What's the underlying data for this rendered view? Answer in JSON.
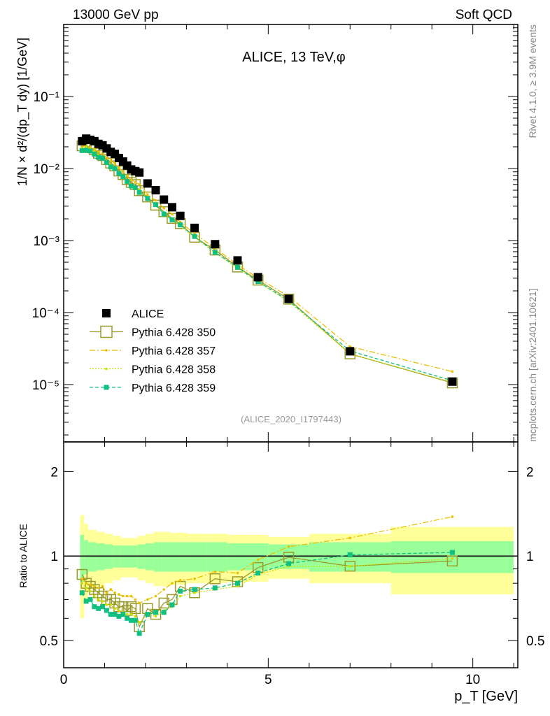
{
  "header": {
    "left": "13000 GeV pp",
    "right": "Soft QCD"
  },
  "side": {
    "rivet": "Rivet 4.1.0, ≥ 3.9M events",
    "mcplots": "mcplots.cern.ch [arXiv:2401.10621]"
  },
  "chart_data": [
    {
      "type": "scatter",
      "title": "ALICE, 13 TeV,φ",
      "ylabel": "1/N × d²/(dp_T dy) [1/GeV]",
      "xlabel": "p_T [GeV]",
      "xlim": [
        0,
        11.1
      ],
      "ylim": [
        1.6e-06,
        1
      ],
      "yscale": "log",
      "yticks": [
        "10⁻⁵",
        "10⁻⁴",
        "10⁻³",
        "10⁻²",
        "10⁻¹"
      ],
      "analysis_id": "(ALICE_2020_I1797443)",
      "x": [
        0.45,
        0.55,
        0.65,
        0.75,
        0.85,
        0.95,
        1.05,
        1.15,
        1.25,
        1.35,
        1.45,
        1.55,
        1.65,
        1.75,
        1.85,
        2.05,
        2.25,
        2.45,
        2.65,
        2.85,
        3.2,
        3.7,
        4.25,
        4.75,
        5.5,
        7.0,
        9.5
      ],
      "alice": [
        0.024,
        0.026,
        0.025,
        0.024,
        0.022,
        0.021,
        0.019,
        0.017,
        0.016,
        0.014,
        0.0125,
        0.011,
        0.0097,
        0.0092,
        0.0088,
        0.0062,
        0.005,
        0.0037,
        0.0029,
        0.0022,
        0.0015,
        0.00089,
        0.00053,
        0.00031,
        0.000155,
        2.9e-05,
        1.1e-05
      ],
      "legend": [
        "ALICE",
        "Pythia 6.428 350",
        "Pythia 6.428 357",
        "Pythia 6.428 358",
        "Pythia 6.428 359"
      ],
      "legend_position": "bottom-left"
    },
    {
      "type": "line",
      "ylabel": "Ratio to ALICE",
      "ylim": [
        0.4,
        2.55
      ],
      "yscale": "log",
      "yticks": [
        "0.5",
        "1",
        "2"
      ],
      "xticks": [
        "0",
        "5",
        "10"
      ],
      "series": [
        {
          "name": "Pythia 6.428 350",
          "color": "#9a9a2a",
          "values": [
            0.86,
            0.8,
            0.78,
            0.76,
            0.74,
            0.72,
            0.7,
            0.7,
            0.68,
            0.66,
            0.66,
            0.64,
            0.66,
            0.65,
            0.56,
            0.65,
            0.62,
            0.68,
            0.7,
            0.78,
            0.74,
            0.83,
            0.81,
            0.91,
            0.99,
            0.92,
            0.96
          ]
        },
        {
          "name": "Pythia 6.428 357",
          "color": "#e8c000",
          "values": [
            0.83,
            0.8,
            0.79,
            0.78,
            0.77,
            0.78,
            0.74,
            0.76,
            0.74,
            0.73,
            0.72,
            0.72,
            0.72,
            0.7,
            0.68,
            0.7,
            0.72,
            0.76,
            0.8,
            0.82,
            0.83,
            0.88,
            0.87,
            0.97,
            1.08,
            1.16,
            1.38
          ]
        },
        {
          "name": "Pythia 6.428 358",
          "color": "#c8e000",
          "values": [
            0.8,
            0.77,
            0.75,
            0.72,
            0.7,
            0.69,
            0.67,
            0.67,
            0.65,
            0.64,
            0.63,
            0.62,
            0.62,
            0.61,
            0.58,
            0.62,
            0.61,
            0.64,
            0.66,
            0.72,
            0.74,
            0.76,
            0.78,
            0.86,
            0.92,
            0.92,
            0.98
          ]
        },
        {
          "name": "Pythia 6.428 359",
          "color": "#10c080",
          "values": [
            0.74,
            0.69,
            0.7,
            0.66,
            0.65,
            0.66,
            0.64,
            0.62,
            0.62,
            0.61,
            0.62,
            0.6,
            0.59,
            0.59,
            0.53,
            0.62,
            0.63,
            0.63,
            0.67,
            0.75,
            0.76,
            0.77,
            0.8,
            0.87,
            0.94,
            1.01,
            1.03
          ]
        }
      ],
      "bands": {
        "edges": [
          0.4,
          0.5,
          0.6,
          0.8,
          1.0,
          1.2,
          1.4,
          1.6,
          1.8,
          2.0,
          2.2,
          2.4,
          2.6,
          3.0,
          3.5,
          4.0,
          4.5,
          5.0,
          6.0,
          8.0,
          11.0
        ],
        "stat": [
          0.19,
          0.14,
          0.12,
          0.11,
          0.1,
          0.09,
          0.09,
          0.09,
          0.1,
          0.11,
          0.12,
          0.12,
          0.12,
          0.12,
          0.12,
          0.11,
          0.11,
          0.1,
          0.12,
          0.13
        ],
        "total": [
          0.4,
          0.3,
          0.24,
          0.22,
          0.2,
          0.18,
          0.16,
          0.16,
          0.18,
          0.2,
          0.22,
          0.22,
          0.21,
          0.2,
          0.2,
          0.19,
          0.19,
          0.17,
          0.2,
          0.27
        ]
      }
    }
  ]
}
